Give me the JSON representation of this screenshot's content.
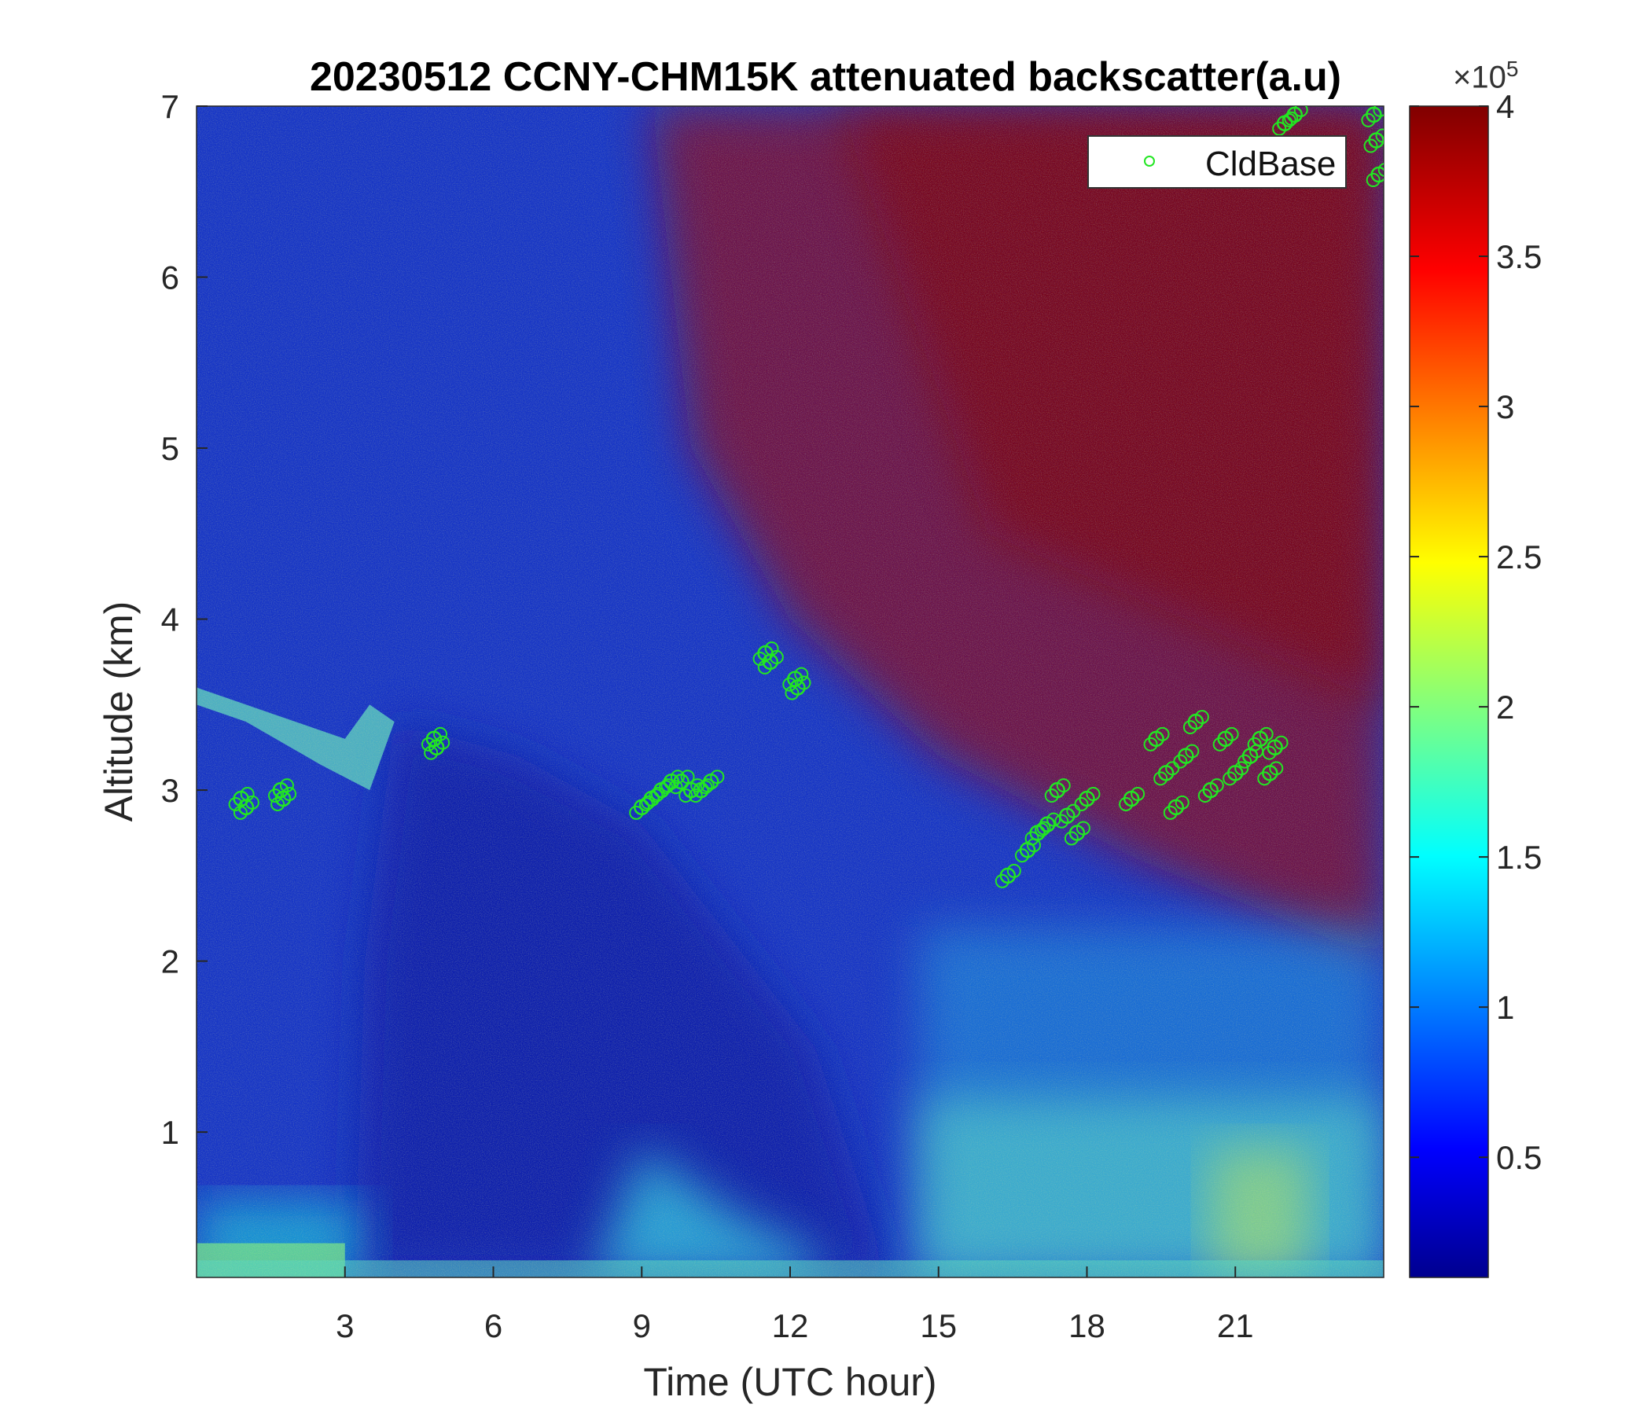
{
  "chart_data": {
    "type": "heatmap",
    "title": "20230512 CCNY-CHM15K attenuated backscatter(a.u)",
    "xlabel": "Time (UTC hour)",
    "ylabel": "Altitude (km)",
    "xlim": [
      0,
      24
    ],
    "ylim": [
      0.15,
      7
    ],
    "x_ticks": [
      "3",
      "6",
      "9",
      "12",
      "15",
      "18",
      "21"
    ],
    "y_ticks": [
      "1",
      "2",
      "3",
      "4",
      "5",
      "6",
      "7"
    ],
    "colormap": "jet",
    "colorbar": {
      "range": [
        0.1,
        4
      ],
      "multiplier": "×10",
      "exponent": "5",
      "ticks": [
        "0.5",
        "1",
        "1.5",
        "2",
        "2.5",
        "3",
        "3.5",
        "4"
      ]
    },
    "legend": {
      "placement": "top-right",
      "entries": [
        "CldBase"
      ]
    },
    "series": [
      {
        "name": "CldBase",
        "marker": "circle",
        "color": "#22e622",
        "x": [
          0.9,
          1.0,
          1.7,
          1.75,
          4.8,
          4.85,
          9.0,
          9.2,
          9.4,
          9.6,
          9.8,
          10.0,
          10.2,
          10.4,
          11.5,
          11.6,
          12.1,
          12.15,
          16.4,
          16.8,
          17.0,
          17.2,
          17.4,
          17.6,
          17.8,
          18.0,
          18.9,
          19.4,
          19.6,
          19.8,
          20.0,
          20.2,
          20.5,
          20.8,
          21.0,
          21.3,
          21.5,
          21.7,
          21.8,
          22.0,
          22.2,
          23.8,
          23.85,
          23.9
        ],
        "y": [
          2.95,
          2.9,
          3.0,
          2.95,
          3.3,
          3.25,
          2.9,
          2.95,
          3.0,
          3.05,
          3.05,
          3.0,
          3.0,
          3.05,
          3.8,
          3.75,
          3.65,
          3.6,
          2.5,
          2.65,
          2.75,
          2.8,
          3.0,
          2.85,
          2.75,
          2.95,
          2.95,
          3.3,
          3.1,
          2.9,
          3.2,
          3.4,
          3.0,
          3.3,
          3.1,
          3.2,
          3.3,
          3.1,
          3.25,
          6.9,
          6.95,
          6.95,
          6.8,
          6.6
        ]
      }
    ]
  }
}
